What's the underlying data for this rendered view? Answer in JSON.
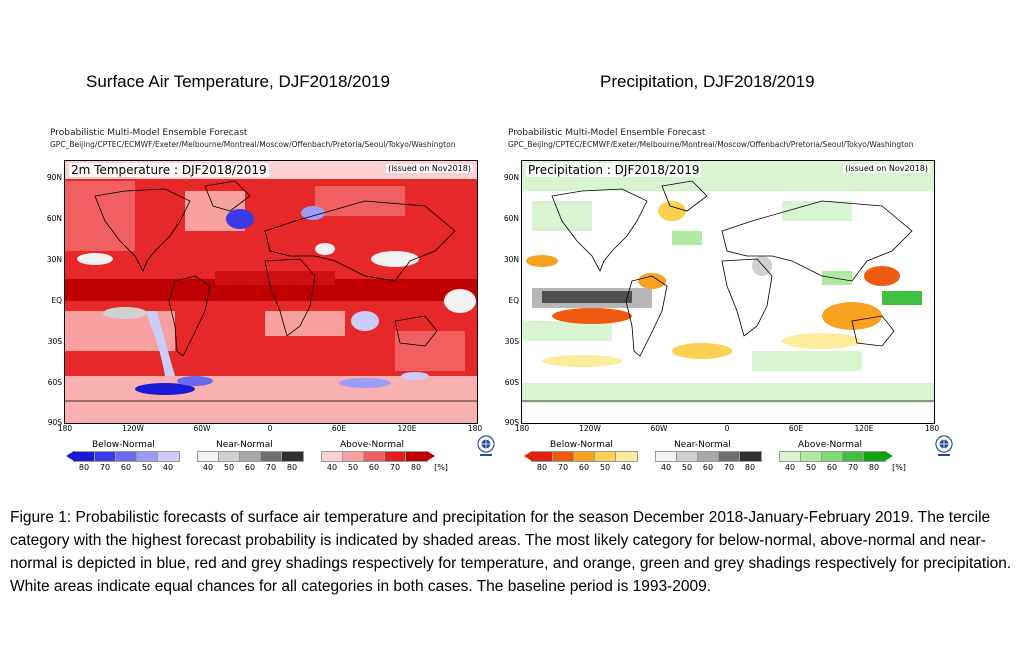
{
  "panels": [
    {
      "title": "Surface Air Temperature, DJF2018/2019",
      "header_line1": "Probabilistic Multi-Model Ensemble Forecast",
      "header_line2": "GPC_Beijing/CPTEC/ECMWF/Exeter/Melbourne/Montreal/Moscow/Offenbach/Pretoria/Seoul/Tokyo/Washington",
      "map_title": "2m Temperature : DJF2018/2019",
      "issued": "(issued on Nov2018)",
      "legend": [
        {
          "label": "Below-Normal",
          "ticks": [
            "80",
            "70",
            "60",
            "50",
            "40"
          ],
          "colors": [
            "#1a1ad6",
            "#3a3ae8",
            "#6a6af0",
            "#9c9cf6",
            "#ccccfb"
          ],
          "arrow": "left"
        },
        {
          "label": "Near-Normal",
          "ticks": [
            "40",
            "50",
            "60",
            "70",
            "80"
          ],
          "colors": [
            "#f2f2f2",
            "#d0d0d0",
            "#a8a8a8",
            "#707070",
            "#303030"
          ],
          "arrow": "none"
        },
        {
          "label": "Above-Normal",
          "ticks": [
            "40",
            "50",
            "60",
            "70",
            "80"
          ],
          "colors": [
            "#fcd2d2",
            "#f8a0a0",
            "#f06060",
            "#e02020",
            "#c00000"
          ],
          "arrow": "right",
          "unit": "[%]"
        }
      ]
    },
    {
      "title": "Precipitation, DJF2018/2019",
      "header_line1": "Probabilistic Multi-Model Ensemble Forecast",
      "header_line2": "GPC_Beijing/CPTEC/ECMWF/Exeter/Melbourne/Montreal/Moscow/Offenbach/Pretoria/Seoul/Tokyo/Washington",
      "map_title": "Precipitation : DJF2018/2019",
      "issued": "(issued on Nov2018)",
      "legend": [
        {
          "label": "Below-Normal",
          "ticks": [
            "80",
            "70",
            "60",
            "50",
            "40"
          ],
          "colors": [
            "#e02010",
            "#f05a10",
            "#f8a020",
            "#fcd050",
            "#fcec9c"
          ],
          "arrow": "left"
        },
        {
          "label": "Near-Normal",
          "ticks": [
            "40",
            "50",
            "60",
            "70",
            "80"
          ],
          "colors": [
            "#f2f2f2",
            "#d0d0d0",
            "#a8a8a8",
            "#707070",
            "#303030"
          ],
          "arrow": "none"
        },
        {
          "label": "Above-Normal",
          "ticks": [
            "40",
            "50",
            "60",
            "70",
            "80"
          ],
          "colors": [
            "#d8f4d0",
            "#b0eaa0",
            "#80dc70",
            "#40c040",
            "#10a010"
          ],
          "arrow": "right",
          "unit": "[%]"
        }
      ]
    }
  ],
  "lat_ticks": [
    "90N",
    "60N",
    "30N",
    "EQ",
    "30S",
    "60S",
    "90S"
  ],
  "lon_ticks": [
    "180",
    "120W",
    "60W",
    "0",
    "60E",
    "120E",
    "180"
  ],
  "caption": "Figure 1: Probabilistic forecasts of surface air temperature and precipitation for the season December 2018-January-February 2019.  The tercile category with the highest forecast probability is indicated by shaded areas. The most likely category for below-normal, above-normal and near-normal is depicted in blue, red and grey shadings respectively for temperature, and orange, green and grey shadings respectively for precipitation. White areas indicate equal chances for all categories in both cases.  The baseline period is 1993-2009."
}
